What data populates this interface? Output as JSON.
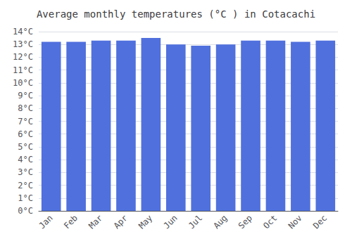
{
  "chart_data": {
    "type": "bar",
    "title": "Average monthly temperatures (°C ) in Cotacachi",
    "categories": [
      "Jan",
      "Feb",
      "Mar",
      "Apr",
      "May",
      "Jun",
      "Jul",
      "Aug",
      "Sep",
      "Oct",
      "Nov",
      "Dec"
    ],
    "values": [
      13.2,
      13.2,
      13.3,
      13.3,
      13.5,
      13.0,
      12.9,
      13.0,
      13.3,
      13.3,
      13.2,
      13.3
    ],
    "ylim": [
      0,
      14
    ],
    "yticks": [
      {
        "value": 0,
        "label": "0°C"
      },
      {
        "value": 1,
        "label": "1°C"
      },
      {
        "value": 2,
        "label": "2°C"
      },
      {
        "value": 3,
        "label": "3°C"
      },
      {
        "value": 4,
        "label": "4°C"
      },
      {
        "value": 5,
        "label": "5°C"
      },
      {
        "value": 6,
        "label": "6°C"
      },
      {
        "value": 7,
        "label": "7°C"
      },
      {
        "value": 8,
        "label": "8°C"
      },
      {
        "value": 9,
        "label": "9°C"
      },
      {
        "value": 10,
        "label": "10°C"
      },
      {
        "value": 11,
        "label": "11°C"
      },
      {
        "value": 12,
        "label": "12°C"
      },
      {
        "value": 13,
        "label": "13°C"
      },
      {
        "value": 14,
        "label": "14°C"
      }
    ],
    "grid": true
  }
}
